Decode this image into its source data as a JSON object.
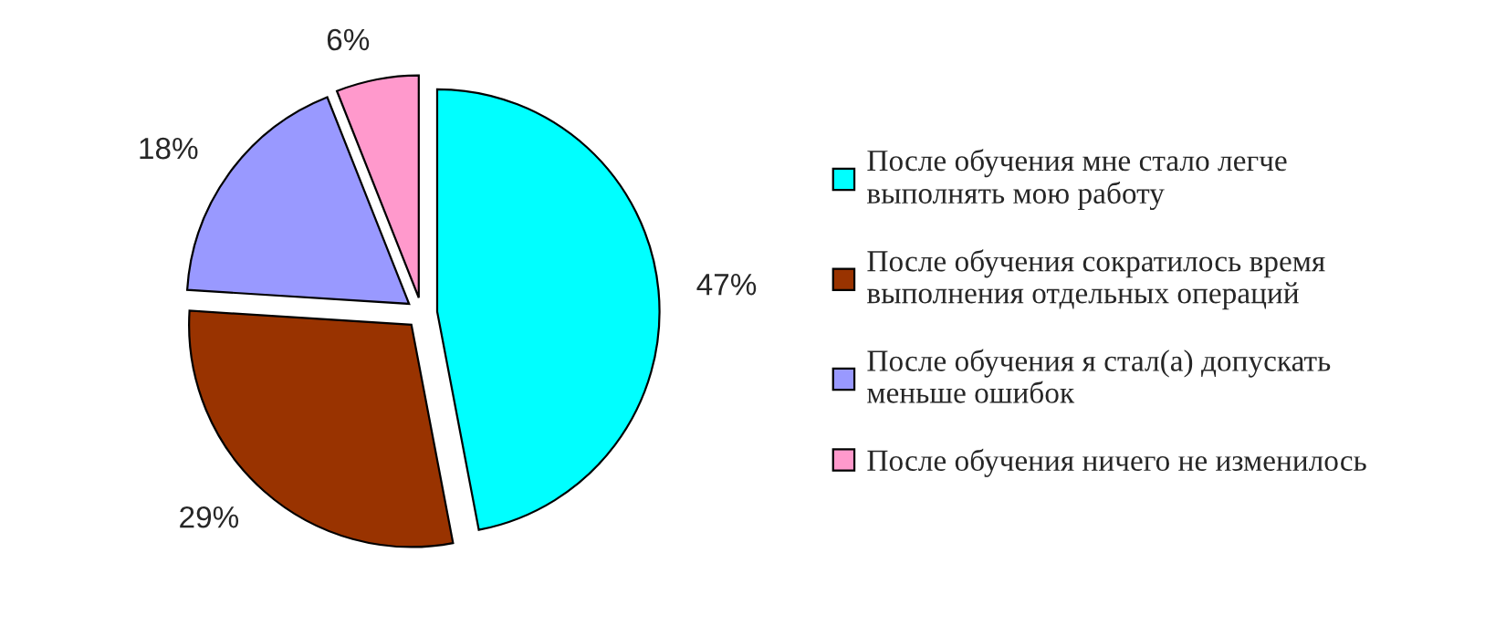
{
  "chart_data": {
    "type": "pie",
    "categories": [
      "После обучения мне стало легче\nвыполнять мою работу",
      "После обучения сократилось время\nвыполнения отдельных операций",
      "После обучения я стал(а) допускать\nменьше ошибок",
      "После обучения ничего не изменилось"
    ],
    "values": [
      47,
      29,
      18,
      6
    ],
    "colors": [
      "#00ffff",
      "#993300",
      "#9999ff",
      "#ff99cc"
    ],
    "value_labels": [
      "47%",
      "29%",
      "18%",
      "6%"
    ],
    "legend": "right"
  }
}
